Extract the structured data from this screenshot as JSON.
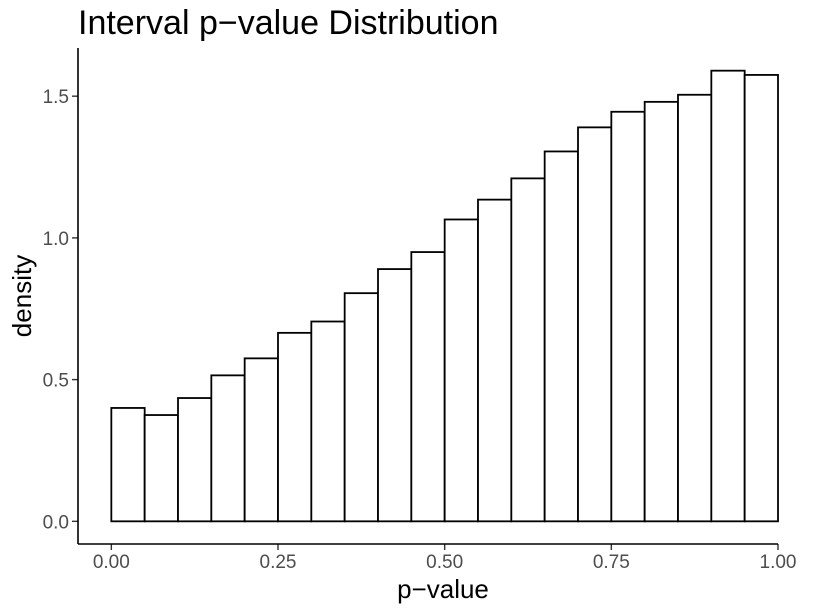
{
  "chart_data": {
    "type": "bar",
    "title": "Interval p−value Distribution",
    "xlabel": "p−value",
    "ylabel": "density",
    "bin_width": 0.05,
    "bins_left": [
      0.0,
      0.05,
      0.1,
      0.15,
      0.2,
      0.25,
      0.3,
      0.35,
      0.4,
      0.45,
      0.5,
      0.55,
      0.6,
      0.65,
      0.7,
      0.75,
      0.8,
      0.85,
      0.9,
      0.95
    ],
    "values": [
      0.4,
      0.375,
      0.435,
      0.515,
      0.575,
      0.665,
      0.705,
      0.805,
      0.89,
      0.95,
      1.065,
      1.135,
      1.21,
      1.305,
      1.39,
      1.445,
      1.48,
      1.505,
      1.59,
      1.575
    ],
    "xlim": [
      -0.05,
      1.0
    ],
    "ylim": [
      -0.08,
      1.67
    ],
    "x_ticks": [
      0.0,
      0.25,
      0.5,
      0.75,
      1.0
    ],
    "x_tick_labels": [
      "0.00",
      "0.25",
      "0.50",
      "0.75",
      "1.00"
    ],
    "y_ticks": [
      0.0,
      0.5,
      1.0,
      1.5
    ],
    "y_tick_labels": [
      "0.0",
      "0.5",
      "1.0",
      "1.5"
    ],
    "grid": false,
    "legend": "none"
  }
}
